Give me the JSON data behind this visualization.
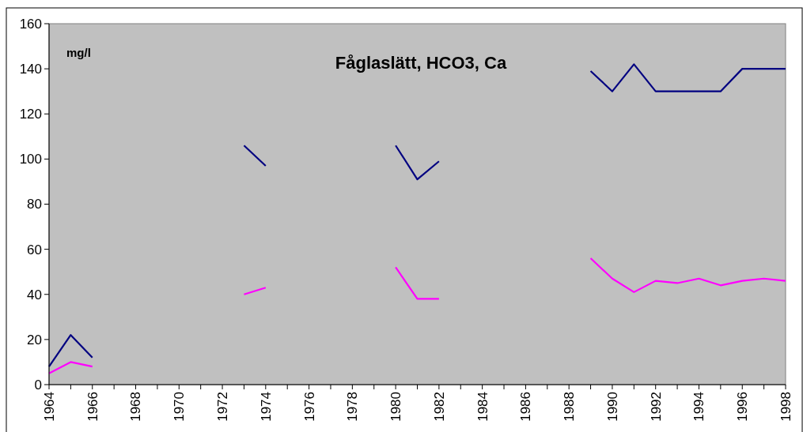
{
  "chart_data": {
    "type": "line",
    "title": "Fåglaslätt, HCO3, Ca",
    "annotations": [
      "mg/l"
    ],
    "categories": [
      "1964",
      null,
      "1966",
      null,
      "1968",
      null,
      "1970",
      null,
      "1972",
      null,
      "1974",
      null,
      "1976",
      null,
      "1978",
      null,
      "1980",
      null,
      "1982",
      null,
      "1984",
      null,
      "1986",
      null,
      "1988",
      null,
      "1990",
      null,
      "1992",
      null,
      "1994",
      null,
      "1996",
      null,
      "1998"
    ],
    "series": [
      {
        "color": "#000080",
        "values": [
          8,
          22,
          12,
          null,
          null,
          null,
          null,
          null,
          null,
          106,
          97,
          null,
          null,
          null,
          null,
          null,
          106,
          91,
          99,
          null,
          null,
          null,
          null,
          null,
          null,
          139,
          130,
          142,
          130,
          130,
          130,
          130,
          140,
          140,
          140
        ]
      },
      {
        "color": "#ff00ff",
        "values": [
          5,
          10,
          8,
          null,
          null,
          null,
          null,
          null,
          null,
          40,
          43,
          null,
          null,
          null,
          null,
          null,
          52,
          38,
          38,
          null,
          null,
          null,
          null,
          null,
          null,
          56,
          47,
          41,
          46,
          45,
          47,
          44,
          46,
          47,
          46
        ]
      }
    ],
    "ylim": [
      0,
      160
    ],
    "yticks": [
      0,
      20,
      40,
      60,
      80,
      100,
      120,
      140,
      160
    ],
    "grid": false,
    "marker": "none",
    "line_style": "solid"
  }
}
